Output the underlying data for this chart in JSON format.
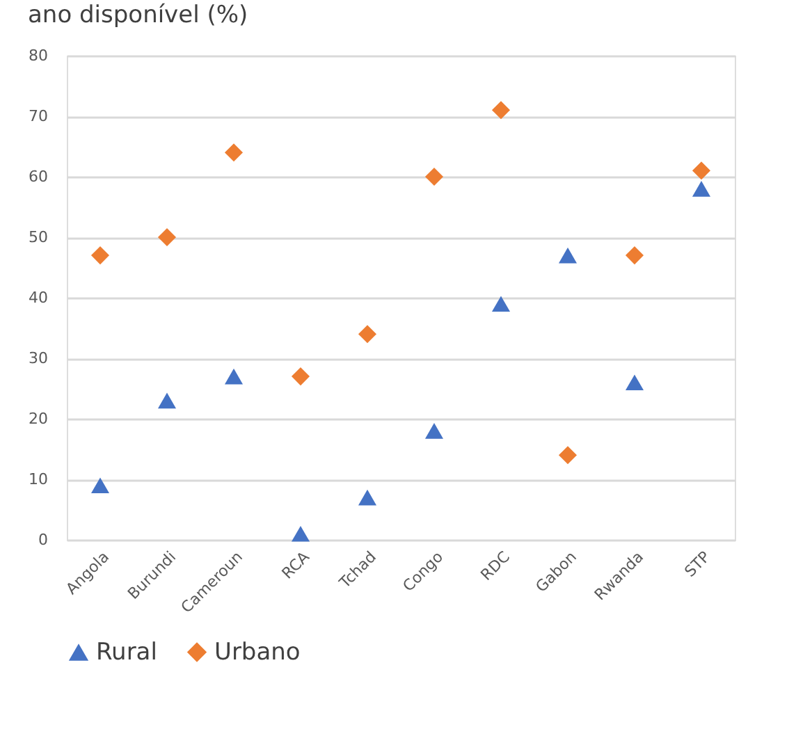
{
  "chart_data": {
    "type": "scatter",
    "title": "ano disponível (%)",
    "categories": [
      "Angola",
      "Burundi",
      "Cameroun",
      "RCA",
      "Tchad",
      "Congo",
      "RDC",
      "Gabon",
      "Rwanda",
      "STP"
    ],
    "series": [
      {
        "name": "Rural",
        "color": "#4472c4",
        "marker": "triangle",
        "values": [
          9,
          23,
          27,
          1,
          7,
          18,
          39,
          47,
          26,
          58
        ]
      },
      {
        "name": "Urbano",
        "color": "#ed7d31",
        "marker": "diamond",
        "values": [
          47,
          50,
          64,
          27,
          34,
          60,
          71,
          14,
          47,
          61
        ]
      }
    ],
    "ylim": [
      0,
      80
    ],
    "yticks": [
      0,
      10,
      20,
      30,
      40,
      50,
      60,
      70,
      80
    ],
    "grid": "y",
    "legend": "bottom"
  }
}
